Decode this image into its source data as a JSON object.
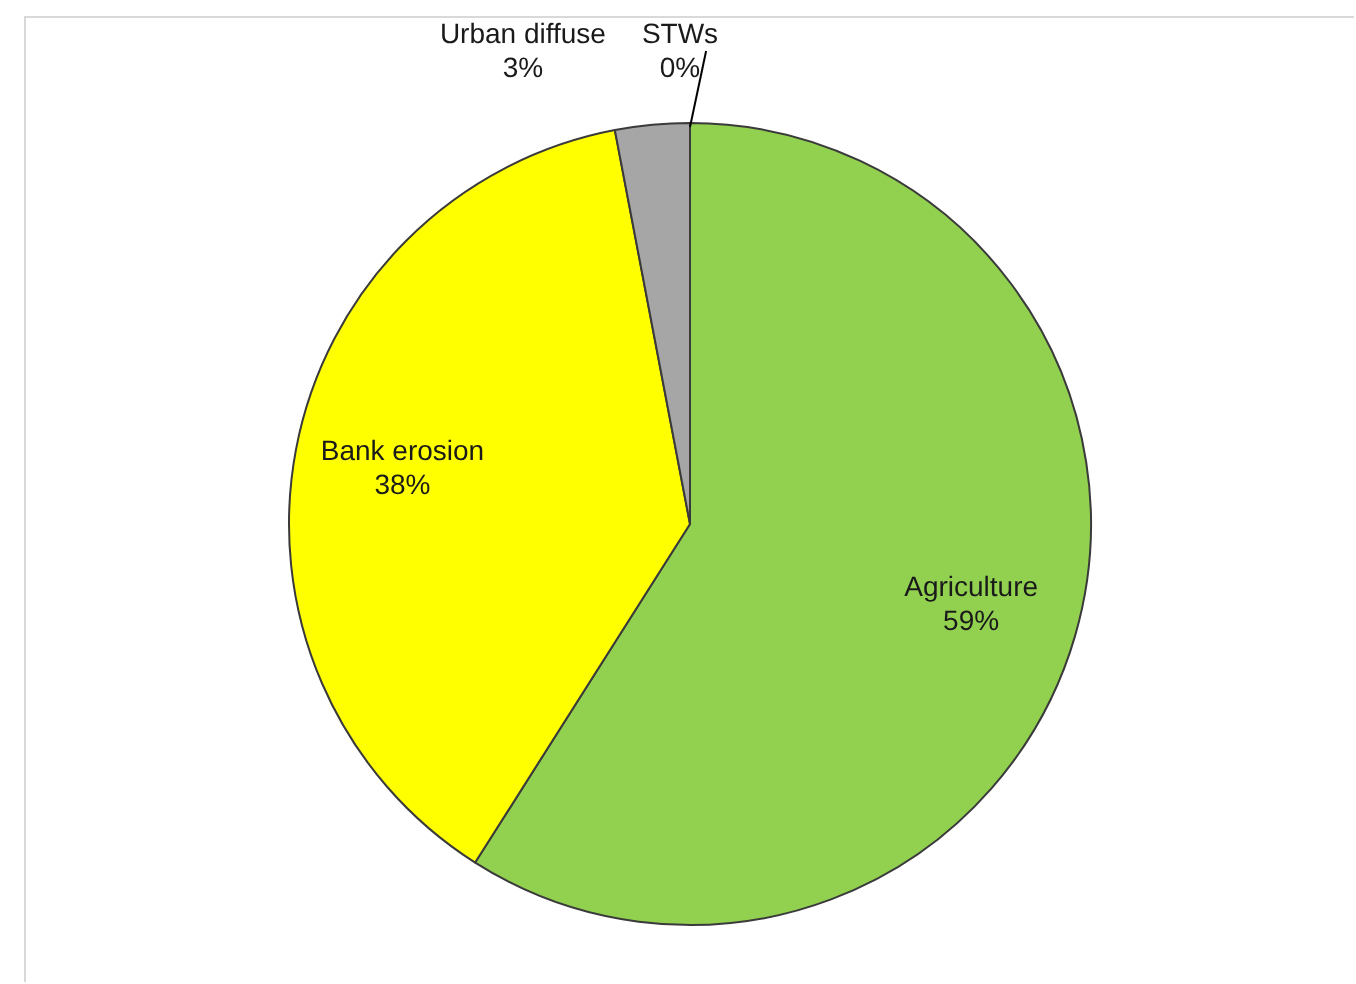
{
  "chart_data": {
    "type": "pie",
    "categories": [
      "Agriculture",
      "Bank erosion",
      "Urban diffuse",
      "STWs"
    ],
    "values": [
      59,
      38,
      3,
      0
    ],
    "value_labels": [
      "59%",
      "38%",
      "3%",
      "0%"
    ],
    "colors": [
      "#92d050",
      "#ffff00",
      "#a6a6a6",
      "#1f1f1f"
    ],
    "legend": false
  }
}
